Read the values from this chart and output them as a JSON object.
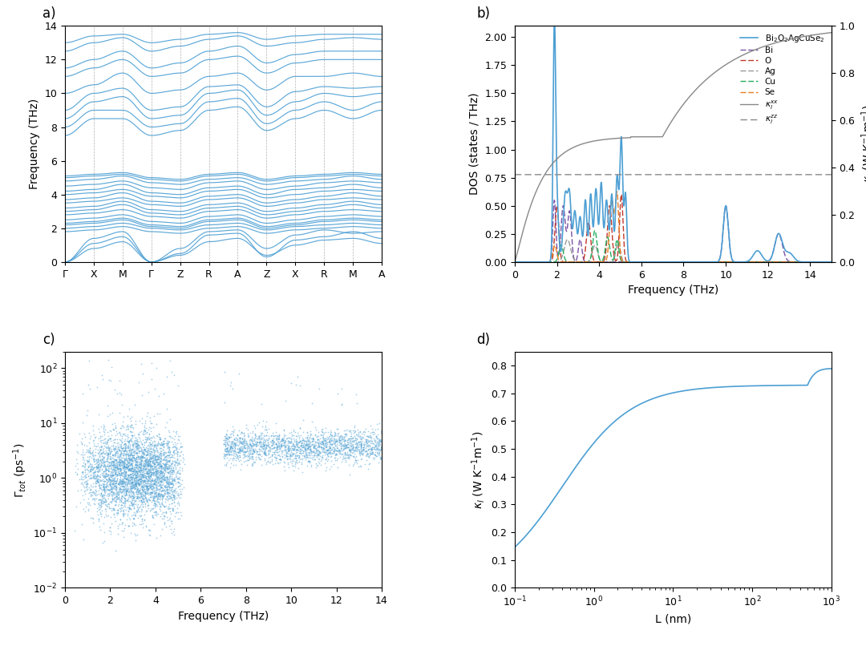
{
  "panel_a": {
    "ylabel": "Frequency (THz)",
    "ylim": [
      0,
      14
    ],
    "kpoints": [
      "Γ",
      "X",
      "M",
      "Γ",
      "Z",
      "R",
      "A",
      "Z",
      "X",
      "R",
      "M",
      "A"
    ],
    "kpoint_positions": [
      0,
      1,
      2,
      3,
      4,
      5,
      6,
      7,
      8,
      9,
      10,
      11
    ],
    "line_color": "#4C9FD4"
  },
  "panel_b": {
    "xlabel": "Frequency (THz)",
    "ylabel_left": "DOS (states / THz)",
    "xlim": [
      0,
      15
    ],
    "ylim_left": [
      0,
      2.1
    ],
    "ylim_right": [
      0,
      1.0
    ],
    "dos_color": "#4C9FD4",
    "bi_color": "#7B52A6",
    "o_color": "#C0392B",
    "ag_color": "#999999",
    "cu_color": "#27AE60",
    "se_color": "#E67E22"
  },
  "panel_c": {
    "xlabel": "Frequency (THz)",
    "xlim": [
      0,
      14
    ],
    "ylim": [
      0.01,
      200
    ],
    "scatter_color": "#4C9FD4"
  },
  "panel_d": {
    "xlabel": "L (nm)",
    "xlim": [
      0.1,
      1000
    ],
    "ylim": [
      0,
      0.85
    ],
    "line_color": "#4C9FD4"
  },
  "background_color": "#FFFFFF",
  "tick_fontsize": 9,
  "label_fontsize": 10,
  "panel_label_fontsize": 12
}
